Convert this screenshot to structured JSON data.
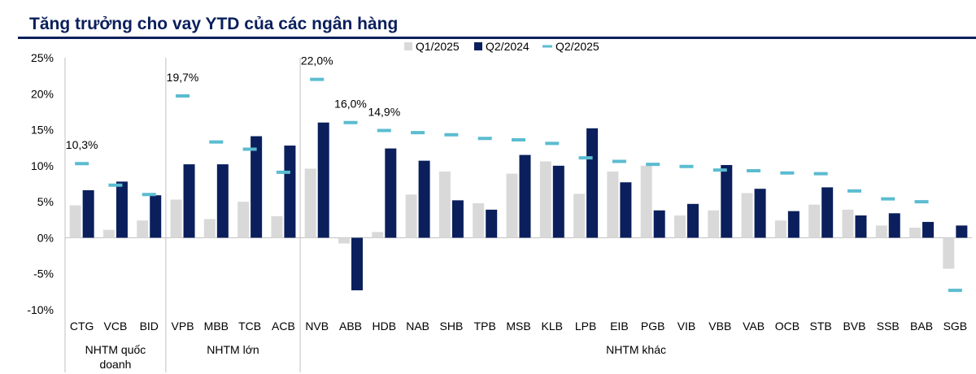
{
  "title": "Tăng trưởng cho vay YTD của các ngân hàng",
  "colors": {
    "q1_2025": "#d9d9d9",
    "q2_2024": "#0a1f5c",
    "q2_2025": "#5bbcd0",
    "title": "#0a1f5c"
  },
  "chart_data": {
    "type": "bar",
    "title": "Tăng trưởng cho vay YTD của các ngân hàng",
    "xlabel": "",
    "ylabel": "",
    "ylim": [
      -0.1,
      0.25
    ],
    "yticks": [
      "25%",
      "20%",
      "15%",
      "10%",
      "5%",
      "0%",
      "-5%",
      "-10%"
    ],
    "legend_position": "top-right",
    "grid": false,
    "categories": [
      "CTG",
      "VCB",
      "BID",
      "VPB",
      "MBB",
      "TCB",
      "ACB",
      "NVB",
      "ABB",
      "HDB",
      "NAB",
      "SHB",
      "TPB",
      "MSB",
      "KLB",
      "LPB",
      "EIB",
      "PGB",
      "VIB",
      "VBB",
      "VAB",
      "OCB",
      "STB",
      "BVB",
      "SSB",
      "BAB",
      "SGB"
    ],
    "groups": [
      {
        "label": "NHTM quốc\ndoanh",
        "count": 3
      },
      {
        "label": "NHTM lớn",
        "count": 4
      },
      {
        "label": "NHTM khác",
        "count": 20
      }
    ],
    "series": [
      {
        "name": "Q1/2025",
        "type": "bar",
        "values": [
          0.045,
          0.011,
          0.024,
          0.053,
          0.026,
          0.05,
          0.03,
          0.096,
          -0.008,
          0.008,
          0.06,
          0.092,
          0.048,
          0.089,
          0.106,
          0.061,
          0.092,
          0.1,
          0.031,
          0.038,
          0.062,
          0.024,
          0.046,
          0.039,
          0.017,
          0.014,
          -0.043
        ]
      },
      {
        "name": "Q2/2024",
        "type": "bar",
        "values": [
          0.066,
          0.078,
          0.059,
          0.102,
          0.102,
          0.141,
          0.128,
          0.16,
          -0.073,
          0.124,
          0.107,
          0.052,
          0.039,
          0.115,
          0.1,
          0.152,
          0.077,
          0.038,
          0.047,
          0.101,
          0.068,
          0.037,
          0.07,
          0.031,
          0.034,
          0.022,
          0.017
        ]
      },
      {
        "name": "Q2/2025",
        "type": "marker",
        "values": [
          0.103,
          0.073,
          0.06,
          0.197,
          0.133,
          0.123,
          0.091,
          0.22,
          0.16,
          0.149,
          0.146,
          0.143,
          0.138,
          0.136,
          0.131,
          0.111,
          0.106,
          0.102,
          0.099,
          0.094,
          0.093,
          0.09,
          0.089,
          0.065,
          0.054,
          0.05,
          -0.073
        ]
      }
    ],
    "data_labels": [
      {
        "category": "CTG",
        "text": "10,3%"
      },
      {
        "category": "VPB",
        "text": "19,7%"
      },
      {
        "category": "NVB",
        "text": "22,0%"
      },
      {
        "category": "ABB",
        "text": "16,0%"
      },
      {
        "category": "HDB",
        "text": "14,9%"
      }
    ]
  }
}
